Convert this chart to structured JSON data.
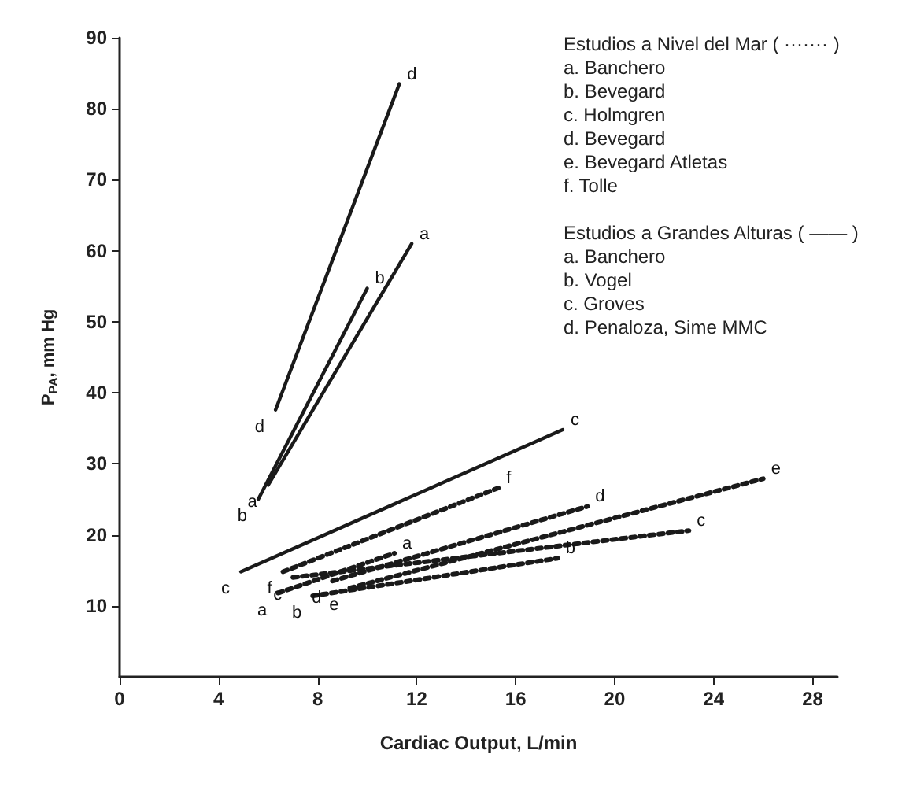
{
  "chart_data": {
    "type": "line",
    "xlabel": "Cardiac Output, L/min",
    "ylabel": "P$_{PA}$, mm Hg",
    "xlim": [
      0,
      29
    ],
    "xticks": [
      0,
      4,
      8,
      12,
      16,
      20,
      24,
      28
    ],
    "ylim": [
      0,
      90
    ],
    "yticks": [
      10,
      20,
      30,
      40,
      50,
      60,
      70,
      80,
      90
    ],
    "grid": false,
    "legend": false,
    "marker": "none",
    "annotations": [
      "Estudios a Nivel del Mar ( ······· )",
      "a. Banchero",
      "b. Bevegard",
      "c. Holmgren",
      "d. Bevegard",
      "e. Bevegard Atletas",
      "f. Tolle",
      "Estudios a Grandes Alturas ( —— )",
      "a. Banchero",
      "b. Vogel",
      "c. Groves",
      "d. Penaloza, Sime MMC"
    ],
    "series": [
      {
        "name": "d",
        "color": "#1a1a1a",
        "line_style": "solid",
        "x": [
          6.3,
          11.3
        ],
        "values": [
          37.6,
          83.5
        ]
      },
      {
        "name": "a",
        "color": "#1a1a1a",
        "line_style": "solid",
        "x": [
          6.0,
          11.8
        ],
        "values": [
          27,
          61
        ]
      },
      {
        "name": "b",
        "color": "#1a1a1a",
        "line_style": "solid",
        "x": [
          5.6,
          10.0
        ],
        "values": [
          25,
          54.7
        ]
      },
      {
        "name": "c",
        "color": "#1a1a1a",
        "line_style": "solid",
        "x": [
          4.9,
          17.9
        ],
        "values": [
          14.8,
          34.8
        ]
      },
      {
        "name": "f",
        "color": "#1a1a1a",
        "line_style": "dotted",
        "x": [
          6.6,
          15.3
        ],
        "values": [
          14.8,
          26.6
        ]
      },
      {
        "name": "d",
        "color": "#1a1a1a",
        "line_style": "dotted",
        "x": [
          8.6,
          18.9
        ],
        "values": [
          13.5,
          24
        ]
      },
      {
        "name": "e",
        "color": "#1a1a1a",
        "line_style": "dotted",
        "x": [
          9.3,
          26.0
        ],
        "values": [
          12.5,
          27.9
        ]
      },
      {
        "name": "c",
        "color": "#1a1a1a",
        "line_style": "dotted",
        "x": [
          7.0,
          23.0
        ],
        "values": [
          14,
          20.6
        ]
      },
      {
        "name": "a",
        "color": "#1a1a1a",
        "line_style": "dotted",
        "x": [
          6.4,
          11.1
        ],
        "values": [
          11.8,
          17.4
        ]
      },
      {
        "name": "b",
        "color": "#1a1a1a",
        "line_style": "dotted",
        "x": [
          7.8,
          17.7
        ],
        "values": [
          11.4,
          16.7
        ]
      }
    ]
  }
}
